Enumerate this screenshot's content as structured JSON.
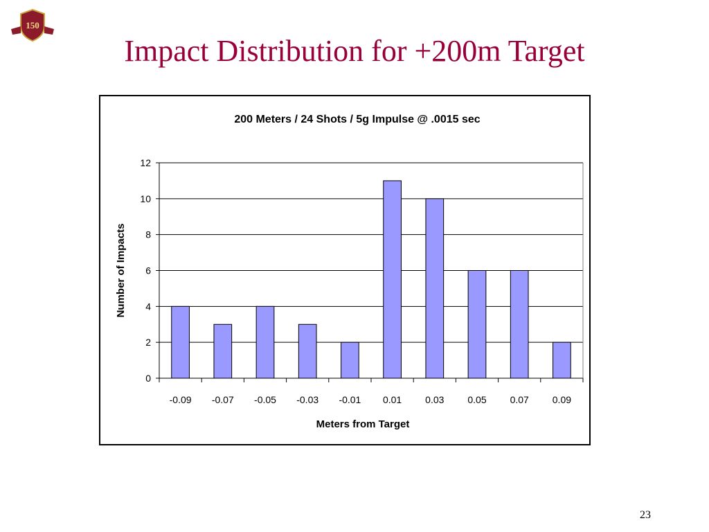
{
  "slide": {
    "title": "Impact Distribution for +200m Target",
    "page_number": "23",
    "logo_text": "150"
  },
  "colors": {
    "title": "#99003a",
    "bar_fill": "#9999ff",
    "bar_stroke": "#000000",
    "logo_crest": "#8b1a2b",
    "logo_gold": "#c9a23a"
  },
  "chart_data": {
    "type": "bar",
    "title": "200 Meters / 24 Shots / 5g Impulse @ .0015 sec",
    "xlabel": "Meters from Target",
    "ylabel": "Number of Impacts",
    "categories": [
      "-0.09",
      "-0.07",
      "-0.05",
      "-0.03",
      "-0.01",
      "0.01",
      "0.03",
      "0.05",
      "0.07",
      "0.09"
    ],
    "values": [
      4,
      3,
      4,
      3,
      2,
      11,
      10,
      6,
      6,
      2
    ],
    "ylim": [
      0,
      12
    ],
    "yticks": [
      "0",
      "2",
      "4",
      "6",
      "8",
      "10",
      "12"
    ],
    "grid": true,
    "legend": "none"
  }
}
